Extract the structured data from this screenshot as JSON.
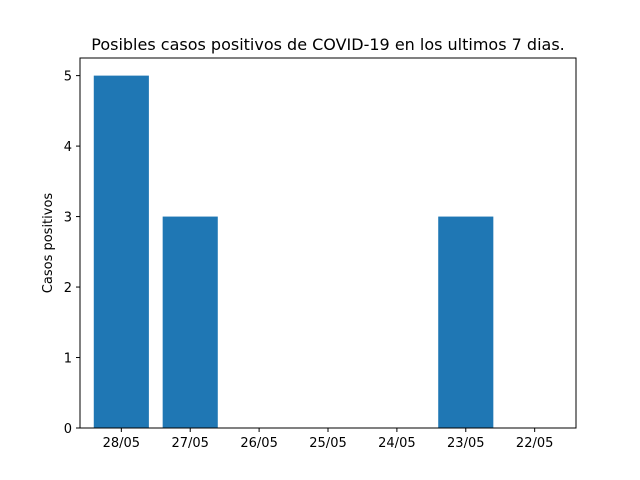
{
  "chart_data": {
    "type": "bar",
    "title": "Posibles casos positivos de COVID-19 en los ultimos 7 dias.",
    "xlabel": "",
    "ylabel": "Casos positivos",
    "categories": [
      "28/05",
      "27/05",
      "26/05",
      "25/05",
      "24/05",
      "23/05",
      "22/05"
    ],
    "values": [
      5,
      3,
      0,
      0,
      0,
      3,
      0
    ],
    "ylim": [
      0,
      5.25
    ],
    "yticks": [
      0,
      1,
      2,
      3,
      4,
      5
    ],
    "grid": false,
    "bar_color": "#1f77b4"
  }
}
